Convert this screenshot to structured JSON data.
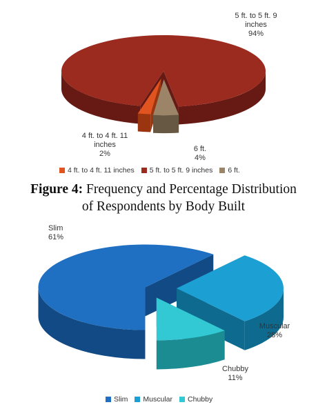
{
  "caption": {
    "label": "Figure 4:",
    "text_line1": "Frequency and Percentage Distribution",
    "text_line2": "of Respondents by Body Built"
  },
  "chart_data": [
    {
      "type": "pie",
      "style": "3d-exploded",
      "categories": [
        "4 ft. to 4 ft. 11 inches",
        "5 ft. to 5 ft. 9 inches",
        "6 ft."
      ],
      "values": [
        2,
        94,
        4
      ],
      "value_labels": [
        "2%",
        "94%",
        "4%"
      ],
      "colors": [
        "#e2541f",
        "#9b2a1f",
        "#9b8468"
      ],
      "side_colors": [
        "#9a3510",
        "#661a13",
        "#665842"
      ],
      "legend_position": "bottom",
      "data_labels": [
        {
          "lines": [
            "4 ft. to 4 ft. 11",
            "inches",
            "2%"
          ]
        },
        {
          "lines": [
            "5 ft. to 5 ft. 9",
            "inches",
            "94%"
          ]
        },
        {
          "lines": [
            "6 ft.",
            "4%"
          ]
        }
      ]
    },
    {
      "type": "pie",
      "style": "3d-exploded",
      "categories": [
        "Slim",
        "Muscular",
        "Chubby"
      ],
      "values": [
        61,
        28,
        11
      ],
      "value_labels": [
        "61%",
        "28%",
        "11%"
      ],
      "colors": [
        "#1f6fc2",
        "#1c9fd2",
        "#33c9d4"
      ],
      "side_colors": [
        "#114a85",
        "#0f6a8f",
        "#1c8c93"
      ],
      "legend_position": "bottom",
      "data_labels": [
        {
          "lines": [
            "Slim",
            "61%"
          ]
        },
        {
          "lines": [
            "Muscular",
            "28%"
          ]
        },
        {
          "lines": [
            "Chubby",
            "11%"
          ]
        }
      ]
    }
  ]
}
